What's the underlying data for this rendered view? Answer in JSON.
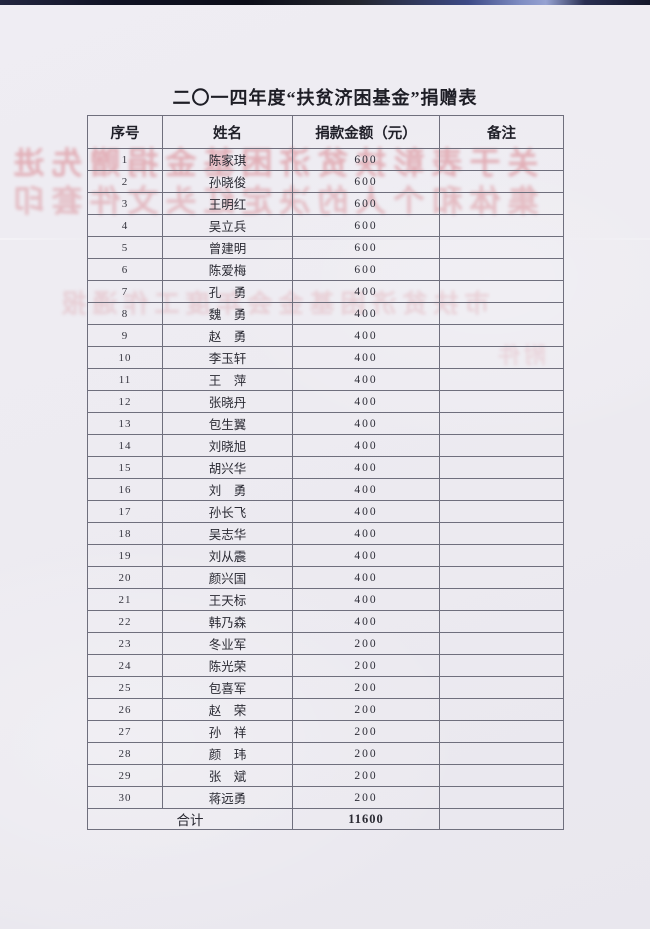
{
  "page": {
    "title": "二〇一四年度“扶贫济困基金”捐赠表"
  },
  "table": {
    "headers": [
      "序号",
      "姓名",
      "捐款金额（元）",
      "备注"
    ],
    "rows": [
      {
        "no": "1",
        "name": "陈家琪",
        "amount": "600",
        "note": ""
      },
      {
        "no": "2",
        "name": "孙晓俊",
        "amount": "600",
        "note": ""
      },
      {
        "no": "3",
        "name": "王明红",
        "amount": "600",
        "note": ""
      },
      {
        "no": "4",
        "name": "吴立兵",
        "amount": "600",
        "note": ""
      },
      {
        "no": "5",
        "name": "曾建明",
        "amount": "600",
        "note": ""
      },
      {
        "no": "6",
        "name": "陈爱梅",
        "amount": "600",
        "note": ""
      },
      {
        "no": "7",
        "name": "孔　勇",
        "amount": "400",
        "note": ""
      },
      {
        "no": "8",
        "name": "魏　勇",
        "amount": "400",
        "note": ""
      },
      {
        "no": "9",
        "name": "赵　勇",
        "amount": "400",
        "note": ""
      },
      {
        "no": "10",
        "name": "李玉轩",
        "amount": "400",
        "note": ""
      },
      {
        "no": "11",
        "name": "王　萍",
        "amount": "400",
        "note": ""
      },
      {
        "no": "12",
        "name": "张晓丹",
        "amount": "400",
        "note": ""
      },
      {
        "no": "13",
        "name": "包生翼",
        "amount": "400",
        "note": ""
      },
      {
        "no": "14",
        "name": "刘晓旭",
        "amount": "400",
        "note": ""
      },
      {
        "no": "15",
        "name": "胡兴华",
        "amount": "400",
        "note": ""
      },
      {
        "no": "16",
        "name": "刘　勇",
        "amount": "400",
        "note": ""
      },
      {
        "no": "17",
        "name": "孙长飞",
        "amount": "400",
        "note": ""
      },
      {
        "no": "18",
        "name": "吴志华",
        "amount": "400",
        "note": ""
      },
      {
        "no": "19",
        "name": "刘从震",
        "amount": "400",
        "note": ""
      },
      {
        "no": "20",
        "name": "颜兴国",
        "amount": "400",
        "note": ""
      },
      {
        "no": "21",
        "name": "王天标",
        "amount": "400",
        "note": ""
      },
      {
        "no": "22",
        "name": "韩乃森",
        "amount": "400",
        "note": ""
      },
      {
        "no": "23",
        "name": "冬业军",
        "amount": "200",
        "note": ""
      },
      {
        "no": "24",
        "name": "陈光荣",
        "amount": "200",
        "note": ""
      },
      {
        "no": "25",
        "name": "包喜军",
        "amount": "200",
        "note": ""
      },
      {
        "no": "26",
        "name": "赵　荣",
        "amount": "200",
        "note": ""
      },
      {
        "no": "27",
        "name": "孙　祥",
        "amount": "200",
        "note": ""
      },
      {
        "no": "28",
        "name": "颜　玮",
        "amount": "200",
        "note": ""
      },
      {
        "no": "29",
        "name": "张　斌",
        "amount": "200",
        "note": ""
      },
      {
        "no": "30",
        "name": "蒋远勇",
        "amount": "200",
        "note": ""
      }
    ],
    "total_label": "合计",
    "total_amount": "11600",
    "total_note": ""
  },
  "bleed_through": {
    "line1": "关于表彰扶贫济困基金捐赠先进",
    "line2": "集体和个人的决定红头文件套印",
    "line3": "市扶贫济困基金会年度工作通报",
    "line4": "附件"
  },
  "colors": {
    "paper": "#edebf1",
    "grid": "#6f6f7d",
    "ink": "#2a2a33",
    "bleed_red": "#c93842",
    "scan_strip_dark": "#0c0d18",
    "scan_strip_blue": "#96a2d2"
  }
}
